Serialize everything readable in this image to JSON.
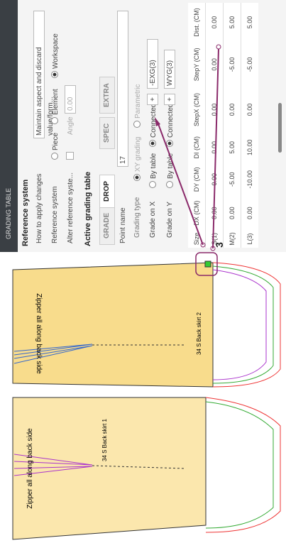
{
  "panel": {
    "title": "GRADING TABLE",
    "reference": {
      "header": "Reference system",
      "apply_label": "How to apply changes",
      "apply_value": "Maintain aspect and discard value/form...",
      "ref_label": "Reference system",
      "ref_options": [
        "Piece",
        "Element",
        "Workspace"
      ],
      "alter_label": "Alter reference syste...",
      "angle_label": "Angle",
      "angle_value": "0.00"
    },
    "active": {
      "header": "Active grading table",
      "tabs": [
        "GRADE",
        "DROP",
        "SPEC",
        "EXTRA"
      ],
      "point_label": "Point name",
      "point_value": "17",
      "type_label": "Grading type",
      "type_options": [
        "XY grading",
        "Parametric"
      ],
      "grade_x": {
        "label": "Grade on X",
        "by_table": "By table",
        "connected": "Connected",
        "plus": "+",
        "value": "-EXG(3)"
      },
      "grade_y": {
        "label": "Grade on Y",
        "by_table": "By table",
        "connected": "Connected",
        "plus": "+",
        "value": "WYG(3)"
      }
    },
    "table": {
      "columns": [
        "Size",
        "DX (CM)",
        "DY (CM)",
        "DI (CM)",
        "StepX (CM)",
        "StepY (CM)",
        "Dist. (CM)"
      ],
      "rows": [
        [
          "S(1)",
          "0.00",
          "0.00",
          "0.00",
          "0.00",
          "0.00",
          "0.00"
        ],
        [
          "M(2)",
          "0.00",
          "-5.00",
          "5.00",
          "0.00",
          "-5.00",
          "5.00"
        ],
        [
          "L(3)",
          "0.00",
          "-10.00",
          "10.00",
          "0.00",
          "-5.00",
          "5.00"
        ]
      ]
    }
  },
  "drawing": {
    "piece_texts": [
      "Zipper all along back side",
      "Zipper all along back side"
    ],
    "labels": [
      "34 S Back skirt 2",
      "34 S Back skirt 1"
    ],
    "point_number": "3"
  }
}
